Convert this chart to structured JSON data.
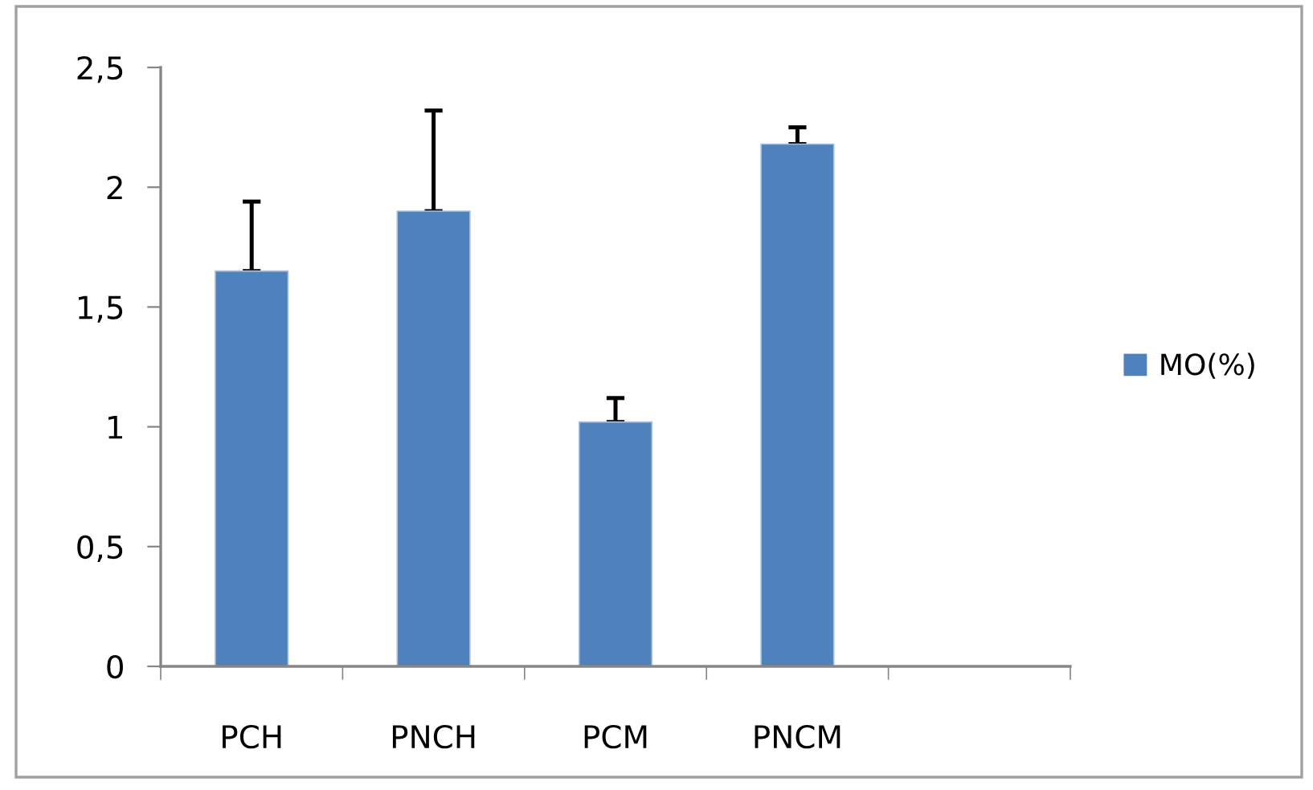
{
  "chart_data": {
    "type": "bar",
    "categories": [
      "PCH",
      "PNCH",
      "PCM",
      "PNCM",
      null
    ],
    "series": [
      {
        "name": "MO(%)",
        "color": "#4f81bd",
        "values": [
          1.65,
          1.9,
          1.02,
          2.18,
          null
        ],
        "errors": [
          [
            1.65,
            1.94
          ],
          [
            1.9,
            2.32
          ],
          [
            1.02,
            1.12
          ],
          [
            2.18,
            2.25
          ],
          null
        ]
      }
    ],
    "ylim": [
      0,
      2.5
    ],
    "yticks": [
      {
        "value": 0,
        "label": "0"
      },
      {
        "value": 0.5,
        "label": "0,5"
      },
      {
        "value": 1,
        "label": "1"
      },
      {
        "value": 1.5,
        "label": "1,5"
      },
      {
        "value": 2,
        "label": "2"
      },
      {
        "value": 2.5,
        "label": "2,5"
      }
    ],
    "grid": false,
    "legend": "right"
  }
}
